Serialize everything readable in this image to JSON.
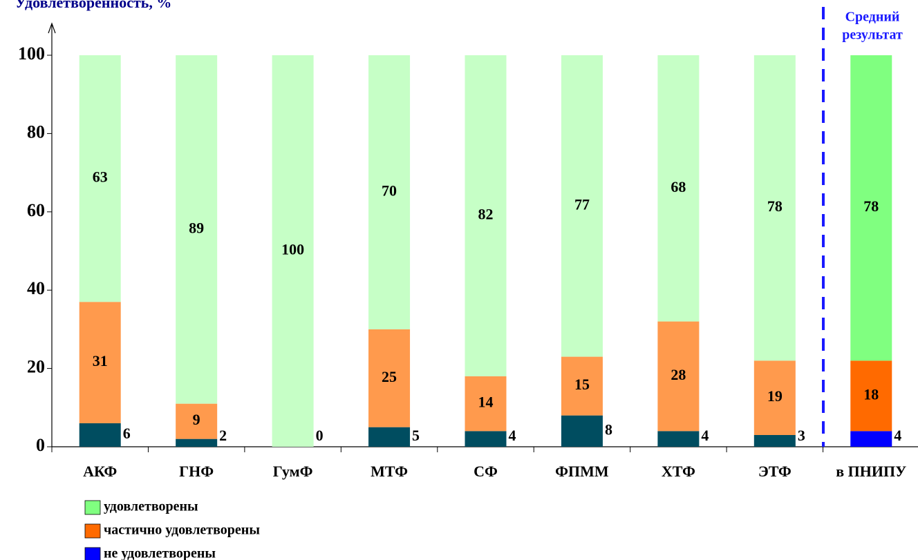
{
  "chart_data": {
    "type": "stacked_bar",
    "title": "Удовлетворенность, %",
    "annotation": [
      "Средний",
      "результат"
    ],
    "categories": [
      "АКФ",
      "ГНФ",
      "ГумФ",
      "МТФ",
      "СФ",
      "ФПММ",
      "ХТФ",
      "ЭТФ",
      "в ПНИПУ"
    ],
    "series": [
      {
        "name": "не удовлетворены",
        "color": "#0000ff",
        "colors": [
          "#004d60",
          "#004d60",
          "#004d60",
          "#004d60",
          "#004d60",
          "#004d60",
          "#004d60",
          "#004d60",
          "#0000ff"
        ],
        "values": [
          6,
          2,
          0,
          5,
          4,
          8,
          4,
          3,
          4
        ]
      },
      {
        "name": "частично удовлетворены",
        "color": "#ff6a00",
        "colors": [
          "#ff9a4d",
          "#ff9a4d",
          "#ff9a4d",
          "#ff9a4d",
          "#ff9a4d",
          "#ff9a4d",
          "#ff9a4d",
          "#ff9a4d",
          "#ff6a00"
        ],
        "values": [
          31,
          9,
          0,
          25,
          14,
          15,
          28,
          19,
          18
        ]
      },
      {
        "name": "удовлетворены",
        "color": "#80ff80",
        "colors": [
          "#c6ffc6",
          "#c6ffc6",
          "#c6ffc6",
          "#c6ffc6",
          "#c6ffc6",
          "#c6ffc6",
          "#c6ffc6",
          "#c6ffc6",
          "#80ff80"
        ],
        "values": [
          63,
          89,
          100,
          70,
          82,
          77,
          68,
          78,
          78
        ]
      }
    ],
    "ylim": [
      0,
      100
    ],
    "yticks": [
      0,
      20,
      40,
      60,
      80,
      100
    ],
    "grid": false
  }
}
